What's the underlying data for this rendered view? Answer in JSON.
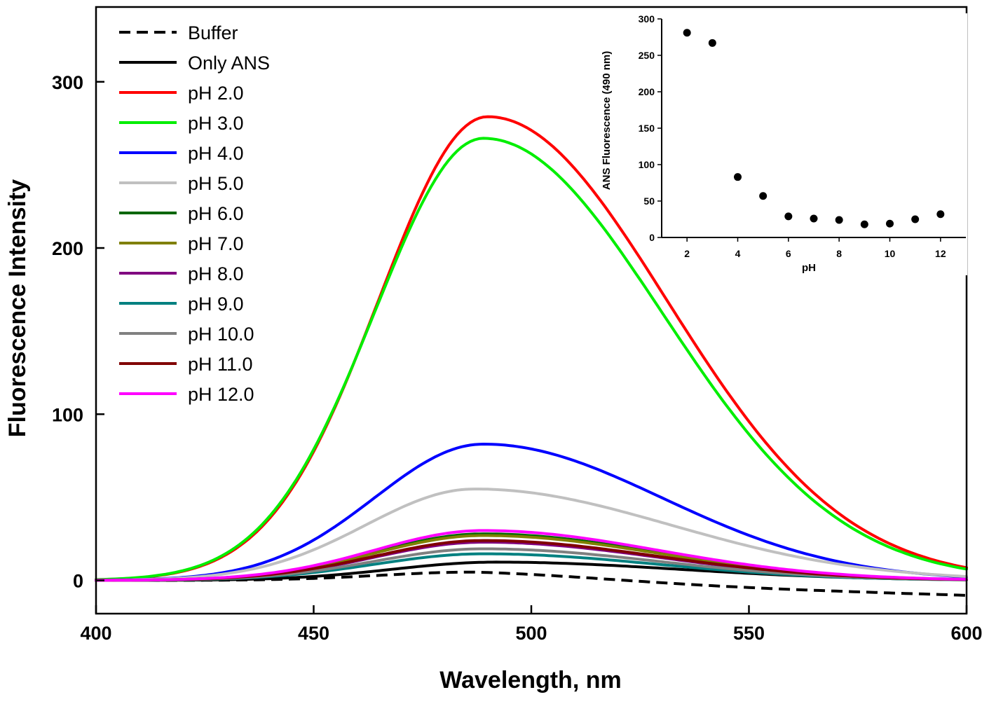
{
  "chart_data": [
    {
      "type": "line",
      "title": "",
      "xlabel": "Wavelength, nm",
      "ylabel": "Fluorescence Intensity",
      "xlim": [
        400,
        600
      ],
      "ylim": [
        -20,
        345
      ],
      "xticks": [
        400,
        450,
        500,
        550,
        600
      ],
      "yticks": [
        0,
        100,
        200,
        300
      ],
      "legend_position": "top-left",
      "series": [
        {
          "name": "Buffer",
          "color": "#000000",
          "dash": true,
          "peak": 5,
          "center": 487,
          "sl": 22,
          "sr": 32,
          "end_value": -9
        },
        {
          "name": "Only ANS",
          "color": "#000000",
          "dash": false,
          "peak": 11,
          "center": 492,
          "sl": 24,
          "sr": 42,
          "end_value": 0
        },
        {
          "name": "pH 2.0",
          "color": "#ff0000",
          "dash": false,
          "peak": 279,
          "center": 490,
          "sl": 25,
          "sr": 41,
          "end_value": 0
        },
        {
          "name": "pH 3.0",
          "color": "#00ee00",
          "dash": false,
          "peak": 266,
          "center": 489,
          "sl": 25,
          "sr": 41,
          "end_value": 0
        },
        {
          "name": "pH 4.0",
          "color": "#0000ff",
          "dash": false,
          "peak": 82,
          "center": 489,
          "sl": 25,
          "sr": 41,
          "end_value": 0
        },
        {
          "name": "pH 5.0",
          "color": "#c0c0c0",
          "dash": false,
          "peak": 55,
          "center": 487,
          "sl": 25,
          "sr": 45,
          "end_value": 0
        },
        {
          "name": "pH 6.0",
          "color": "#006600",
          "dash": false,
          "peak": 28,
          "center": 489,
          "sl": 25,
          "sr": 40,
          "end_value": 0
        },
        {
          "name": "pH 7.0",
          "color": "#808000",
          "dash": false,
          "peak": 27,
          "center": 489,
          "sl": 25,
          "sr": 40,
          "end_value": 0
        },
        {
          "name": "pH 8.0",
          "color": "#800080",
          "dash": false,
          "peak": 23,
          "center": 489,
          "sl": 25,
          "sr": 40,
          "end_value": 0
        },
        {
          "name": "pH 9.0",
          "color": "#008080",
          "dash": false,
          "peak": 16,
          "center": 489,
          "sl": 25,
          "sr": 40,
          "end_value": 0
        },
        {
          "name": "pH 10.0",
          "color": "#808080",
          "dash": false,
          "peak": 19,
          "center": 489,
          "sl": 25,
          "sr": 40,
          "end_value": 0
        },
        {
          "name": "pH 11.0",
          "color": "#800000",
          "dash": false,
          "peak": 24,
          "center": 489,
          "sl": 25,
          "sr": 40,
          "end_value": 0
        },
        {
          "name": "pH 12.0",
          "color": "#ff00ff",
          "dash": false,
          "peak": 30,
          "center": 489,
          "sl": 25,
          "sr": 40,
          "end_value": 0
        }
      ]
    },
    {
      "type": "scatter",
      "title": "",
      "xlabel": "pH",
      "ylabel": "ANS Fluorescence (490 nm)",
      "xlim": [
        1,
        13
      ],
      "ylim": [
        0,
        300
      ],
      "xticks": [
        2,
        4,
        6,
        8,
        10,
        12
      ],
      "yticks": [
        0,
        50,
        100,
        150,
        200,
        250,
        300
      ],
      "legend_position": "none",
      "placement": "inset top-right",
      "x": [
        2,
        3,
        4,
        5,
        6,
        7,
        8,
        9,
        10,
        11,
        12
      ],
      "y": [
        281,
        267,
        83,
        57,
        29,
        26,
        24,
        18,
        19,
        25,
        32
      ]
    }
  ]
}
